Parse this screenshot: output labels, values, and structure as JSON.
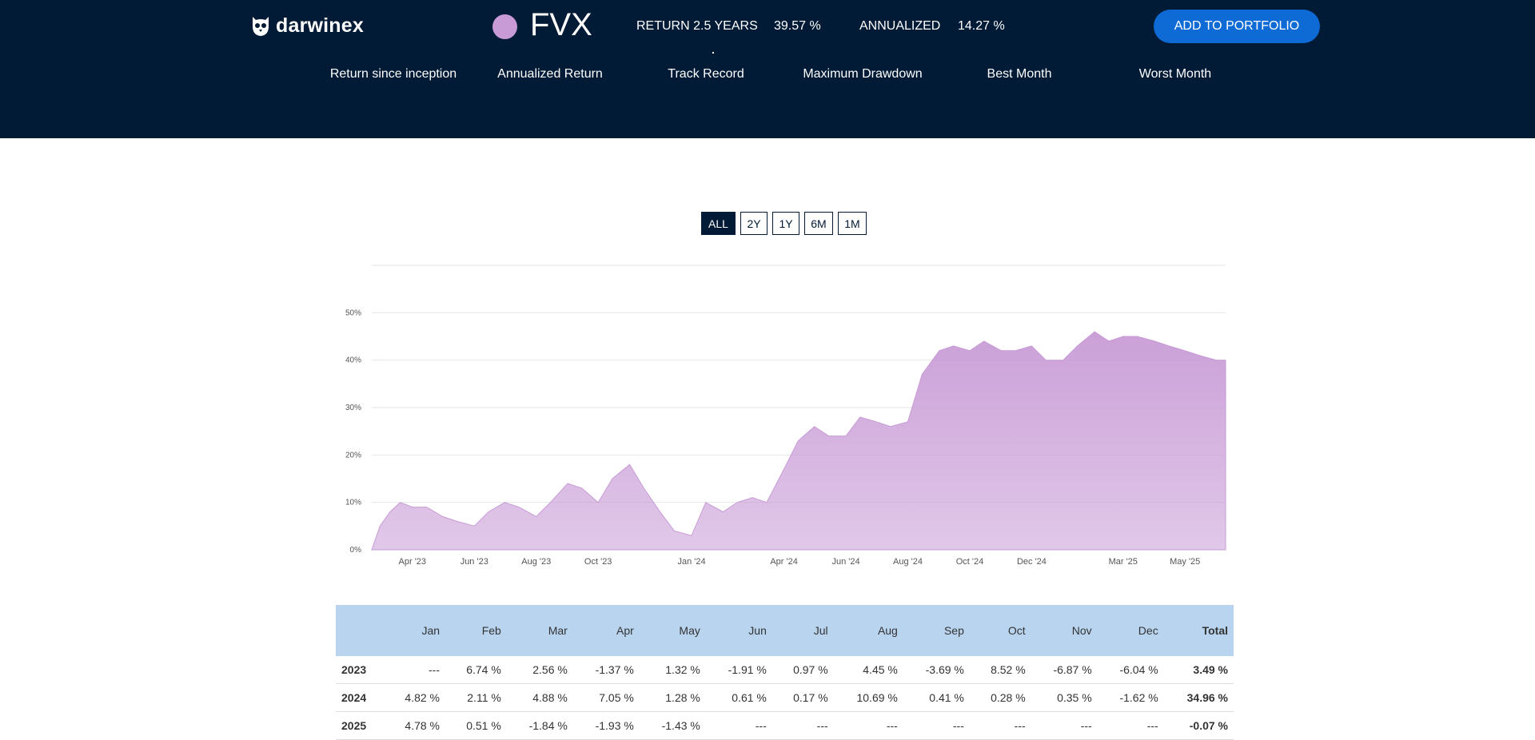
{
  "header": {
    "logo_text": "darwinex",
    "logo_icon": "owl-icon",
    "ticker": "FVX",
    "dot_color": "#c89bd6",
    "return_label": "RETURN 2.5 YEARS",
    "return_value": "39.57 %",
    "annualized_label": "ANNUALIZED",
    "annualized_value": "14.27 %",
    "cta_label": "ADD TO PORTFOLIO",
    "accent": "#0e6bd5",
    "background": "#011a35"
  },
  "metrics": [
    {
      "label": "Return since inception"
    },
    {
      "label": "Annualized Return"
    },
    {
      "label": "Track Record"
    },
    {
      "label": "Maximum Drawdown"
    },
    {
      "label": "Best Month"
    },
    {
      "label": "Worst Month"
    }
  ],
  "range_buttons": [
    "ALL",
    "2Y",
    "1Y",
    "6M",
    "1M"
  ],
  "active_range": "ALL",
  "chart_data": {
    "type": "area",
    "x_ticks": [
      "Apr '23",
      "Jun '23",
      "Aug '23",
      "Oct '23",
      "Jan '24",
      "Apr '24",
      "Jun '24",
      "Aug '24",
      "Oct '24",
      "Dec '24",
      "Mar '25",
      "May '25"
    ],
    "y_ticks": [
      "0%",
      "10%",
      "20%",
      "30%",
      "40%",
      "50%"
    ],
    "ylim": [
      0,
      60
    ],
    "grid": true,
    "fill_color": "#c89bd6",
    "series": [
      {
        "x": [
          "2023-02-20",
          "2023-02-28",
          "2023-03-10",
          "2023-03-20",
          "2023-04-01",
          "2023-04-15",
          "2023-05-01",
          "2023-05-15",
          "2023-06-01",
          "2023-06-15",
          "2023-07-01",
          "2023-07-15",
          "2023-08-01",
          "2023-08-15",
          "2023-09-01",
          "2023-09-15",
          "2023-10-01",
          "2023-10-15",
          "2023-11-01",
          "2023-11-15",
          "2023-12-01",
          "2023-12-15",
          "2024-01-01",
          "2024-01-15",
          "2024-02-01",
          "2024-02-15",
          "2024-03-01",
          "2024-03-15",
          "2024-04-01",
          "2024-04-15",
          "2024-05-01",
          "2024-05-15",
          "2024-06-01",
          "2024-06-15",
          "2024-07-01",
          "2024-07-15",
          "2024-08-01",
          "2024-08-15",
          "2024-09-01",
          "2024-09-15",
          "2024-10-01",
          "2024-10-15",
          "2024-11-01",
          "2024-11-15",
          "2024-12-01",
          "2024-12-15",
          "2025-01-01",
          "2025-01-15",
          "2025-02-01",
          "2025-02-15",
          "2025-03-01",
          "2025-03-15",
          "2025-04-01",
          "2025-04-15",
          "2025-05-01",
          "2025-05-15",
          "2025-06-01",
          "2025-06-10"
        ],
        "y": [
          0,
          5,
          8,
          10,
          9,
          9,
          7,
          6,
          5,
          8,
          10,
          9,
          7,
          10,
          14,
          13,
          10,
          15,
          18,
          13,
          8,
          4,
          3,
          10,
          8,
          10,
          11,
          10,
          17,
          23,
          26,
          24,
          24,
          28,
          27,
          26,
          27,
          37,
          42,
          43,
          42,
          44,
          42,
          42,
          43,
          40,
          40,
          43,
          46,
          44,
          45,
          45,
          44,
          43,
          42,
          41,
          40,
          40
        ]
      }
    ]
  },
  "returns_table": {
    "headers": [
      "",
      "Jan",
      "Feb",
      "Mar",
      "Apr",
      "May",
      "Jun",
      "Jul",
      "Aug",
      "Sep",
      "Oct",
      "Nov",
      "Dec",
      "Total"
    ],
    "rows": [
      [
        "2023",
        "---",
        "6.74 %",
        "2.56 %",
        "-1.37 %",
        "1.32 %",
        "-1.91 %",
        "0.97 %",
        "4.45 %",
        "-3.69 %",
        "8.52 %",
        "-6.87 %",
        "-6.04 %",
        "3.49 %"
      ],
      [
        "2024",
        "4.82 %",
        "2.11 %",
        "4.88 %",
        "7.05 %",
        "1.28 %",
        "0.61 %",
        "0.17 %",
        "10.69 %",
        "0.41 %",
        "0.28 %",
        "0.35 %",
        "-1.62 %",
        "34.96 %"
      ],
      [
        "2025",
        "4.78 %",
        "0.51 %",
        "-1.84 %",
        "-1.93 %",
        "-1.43 %",
        "---",
        "---",
        "---",
        "---",
        "---",
        "---",
        "---",
        "-0.07 %"
      ]
    ]
  }
}
